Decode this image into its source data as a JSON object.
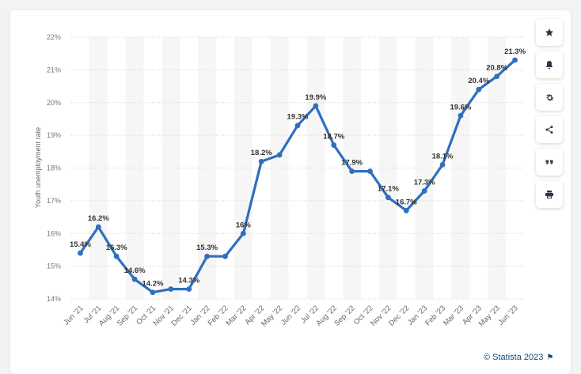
{
  "chart_data": {
    "type": "line",
    "ylabel": "Youth unemployment rate",
    "ylim": [
      14,
      22
    ],
    "y_ticks": [
      "14%",
      "15%",
      "16%",
      "17%",
      "18%",
      "19%",
      "20%",
      "21%",
      "22%"
    ],
    "categories": [
      "Jun '21",
      "Jul '21",
      "Aug '21",
      "Sep '21",
      "Oct '21",
      "Nov '21",
      "Dec '21",
      "Jan '22",
      "Feb '22",
      "Mar '22",
      "Apr '22",
      "May '22",
      "Jun '22",
      "Jul '22",
      "Aug '22",
      "Sep '22",
      "Oct '22",
      "Nov '22",
      "Dec '22",
      "Jan '23",
      "Feb '23",
      "Mar '23",
      "Apr '23",
      "May '23",
      "Jun '23"
    ],
    "series": [
      {
        "values": [
          15.4,
          16.2,
          15.3,
          14.6,
          14.2,
          14.3,
          14.3,
          15.3,
          15.3,
          16,
          18.2,
          18.4,
          19.3,
          19.9,
          18.7,
          17.9,
          17.9,
          17.1,
          16.7,
          17.3,
          18.1,
          19.6,
          20.4,
          20.8,
          21.3
        ],
        "labels": [
          "15.4%",
          "16.2%",
          "15.3%",
          "14.6%",
          "14.2%",
          "",
          "14.3%",
          "15.3%",
          "",
          "16%",
          "18.2%",
          "",
          "19.3%",
          "19.9%",
          "18.7%",
          "17.9%",
          "",
          "17.1%",
          "16.7%",
          "17.3%",
          "18.1%",
          "19.6%",
          "20.4%",
          "20.8%",
          "21.3%"
        ]
      }
    ],
    "line_color": "#2f6fbf",
    "grid": true
  },
  "toolbar": [
    {
      "name": "favorite-button",
      "icon": "star-icon"
    },
    {
      "name": "notification-button",
      "icon": "bell-icon"
    },
    {
      "name": "settings-button",
      "icon": "gear-icon"
    },
    {
      "name": "share-button",
      "icon": "share-icon"
    },
    {
      "name": "cite-button",
      "icon": "quote-icon"
    },
    {
      "name": "print-button",
      "icon": "printer-icon"
    }
  ],
  "credit": {
    "text": "© Statista 2023"
  }
}
